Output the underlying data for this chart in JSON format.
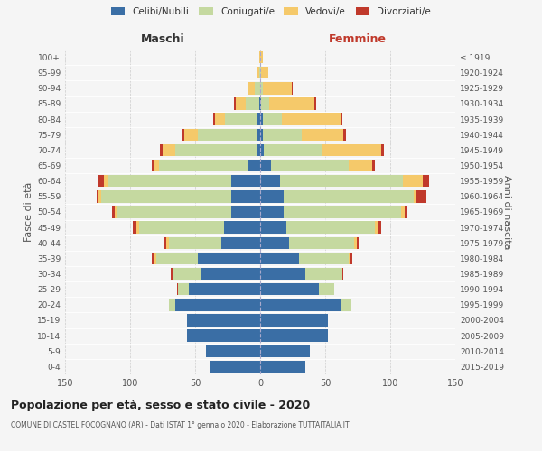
{
  "age_groups": [
    "0-4",
    "5-9",
    "10-14",
    "15-19",
    "20-24",
    "25-29",
    "30-34",
    "35-39",
    "40-44",
    "45-49",
    "50-54",
    "55-59",
    "60-64",
    "65-69",
    "70-74",
    "75-79",
    "80-84",
    "85-89",
    "90-94",
    "95-99",
    "100+"
  ],
  "birth_years": [
    "2015-2019",
    "2010-2014",
    "2005-2009",
    "2000-2004",
    "1995-1999",
    "1990-1994",
    "1985-1989",
    "1980-1984",
    "1975-1979",
    "1970-1974",
    "1965-1969",
    "1960-1964",
    "1955-1959",
    "1950-1954",
    "1945-1949",
    "1940-1944",
    "1935-1939",
    "1930-1934",
    "1925-1929",
    "1920-1924",
    "≤ 1919"
  ],
  "colors": {
    "celibi": "#3a6ea5",
    "coniugati": "#c5d9a0",
    "vedovi": "#f5c96a",
    "divorziati": "#c0392b"
  },
  "males": {
    "celibi": [
      38,
      42,
      56,
      56,
      65,
      55,
      45,
      48,
      30,
      28,
      22,
      22,
      22,
      10,
      3,
      3,
      2,
      1,
      0,
      0,
      0
    ],
    "coniugati": [
      0,
      0,
      0,
      0,
      5,
      8,
      22,
      32,
      40,
      65,
      88,
      100,
      95,
      68,
      62,
      45,
      25,
      10,
      4,
      1,
      0
    ],
    "vedovi": [
      0,
      0,
      0,
      0,
      0,
      0,
      0,
      1,
      2,
      2,
      2,
      2,
      3,
      3,
      10,
      10,
      8,
      8,
      5,
      2,
      1
    ],
    "divorziati": [
      0,
      0,
      0,
      0,
      0,
      1,
      2,
      2,
      2,
      3,
      2,
      2,
      5,
      2,
      2,
      2,
      1,
      1,
      0,
      0,
      0
    ]
  },
  "females": {
    "celibi": [
      35,
      38,
      52,
      52,
      62,
      45,
      35,
      30,
      22,
      20,
      18,
      18,
      15,
      8,
      3,
      2,
      2,
      1,
      0,
      0,
      0
    ],
    "coniugati": [
      0,
      0,
      0,
      0,
      8,
      12,
      28,
      38,
      50,
      68,
      90,
      100,
      95,
      60,
      45,
      30,
      15,
      6,
      2,
      1,
      0
    ],
    "vedovi": [
      0,
      0,
      0,
      0,
      0,
      0,
      0,
      1,
      2,
      3,
      3,
      2,
      15,
      18,
      45,
      32,
      45,
      35,
      22,
      5,
      2
    ],
    "divorziati": [
      0,
      0,
      0,
      0,
      0,
      0,
      1,
      2,
      2,
      2,
      2,
      8,
      5,
      2,
      2,
      2,
      1,
      1,
      1,
      0,
      0
    ]
  },
  "title": "Popolazione per età, sesso e stato civile - 2020",
  "subtitle": "COMUNE DI CASTEL FOCOGNANO (AR) - Dati ISTAT 1° gennaio 2020 - Elaborazione TUTTAITALIA.IT",
  "xlim": 150,
  "ylabel_left": "Fasce di età",
  "ylabel_right": "Anni di nascita",
  "xlabel_left": "Maschi",
  "xlabel_right": "Femmine",
  "bg_color": "#f5f5f5",
  "grid_color": "#cccccc"
}
